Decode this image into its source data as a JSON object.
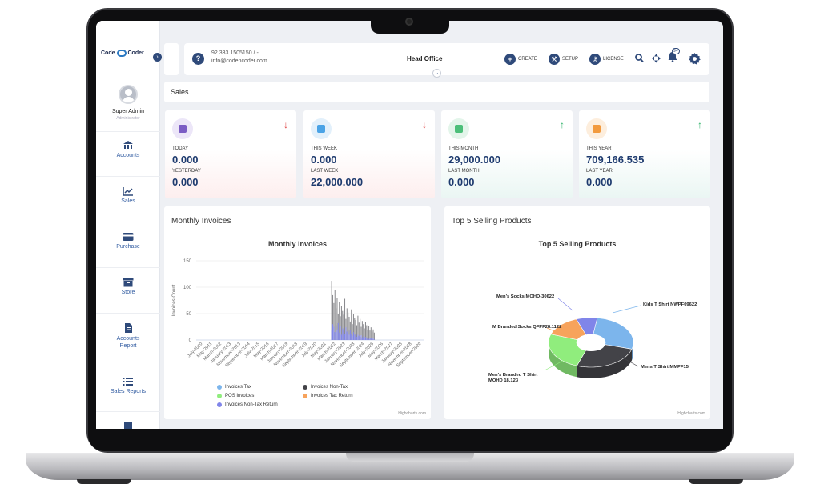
{
  "sidebar": {
    "logo_text_1": "Code",
    "logo_text_2": "Coder",
    "user_name": "Super Admin",
    "user_role": "Administrator",
    "items": [
      {
        "label": "Accounts"
      },
      {
        "label": "Sales"
      },
      {
        "label": "Purchase"
      },
      {
        "label": "Store"
      },
      {
        "label": "Accounts Report"
      },
      {
        "label": "Sales Reports"
      }
    ]
  },
  "topbar": {
    "phone": "92 333 1505150 / -",
    "email": "info@codencoder.com",
    "branch": "Head Office",
    "create_label": "CREATE",
    "setup_label": "SETUP",
    "license_label": "LICENSE",
    "notification_count": "9+"
  },
  "page": {
    "title": "Sales"
  },
  "cards": [
    {
      "label1": "TODAY",
      "value1": "0.000",
      "label2": "YESTERDAY",
      "value2": "0.000",
      "trend": "down",
      "icon_color": "#7b5cc4",
      "icon_bg": "#ece6f8"
    },
    {
      "label1": "THIS WEEK",
      "value1": "0.000",
      "label2": "LAST WEEK",
      "value2": "22,000.000",
      "trend": "down",
      "icon_color": "#4aa3e6",
      "icon_bg": "#e2f0fb"
    },
    {
      "label1": "THIS MONTH",
      "value1": "29,000.000",
      "label2": "LAST MONTH",
      "value2": "0.000",
      "trend": "up",
      "icon_color": "#4cbf79",
      "icon_bg": "#e3f5ea"
    },
    {
      "label1": "THIS YEAR",
      "value1": "709,166.535",
      "label2": "LAST YEAR",
      "value2": "0.000",
      "trend": "up",
      "icon_color": "#f29a3d",
      "icon_bg": "#fdeedd"
    }
  ],
  "colors": {
    "down": "#e04646",
    "up": "#2fb36a",
    "accent": "#2f4a7a"
  },
  "panels": {
    "invoices_panel_title": "Monthly Invoices",
    "products_panel_title": "Top 5 Selling Products",
    "credits": "Highcharts.com"
  },
  "chart_data": [
    {
      "type": "bar",
      "title": "Monthly Invoices",
      "ylabel": "Invoices Count",
      "ylim": [
        0,
        150
      ],
      "yticks": [
        0,
        50,
        100,
        150
      ],
      "xticks": [
        "July-2010",
        "May-2011",
        "March-2012",
        "January-2013",
        "November-2013",
        "September-2014",
        "July-2015",
        "May-2016",
        "March-2017",
        "January-2018",
        "November-2018",
        "September-2019",
        "July-2020",
        "May-2021",
        "March-2022",
        "January-2023",
        "November-2023",
        "September-2024",
        "July-2025",
        "May-2026",
        "March-2027",
        "January-2028",
        "November-2028",
        "September-2029"
      ],
      "legend": [
        {
          "name": "Invoices Tax",
          "color": "#7cb5ec"
        },
        {
          "name": "Invoices Non-Tax",
          "color": "#434348"
        },
        {
          "name": "POS Invoices",
          "color": "#90ed7d"
        },
        {
          "name": "Invoices Tax Return",
          "color": "#f7a35c"
        },
        {
          "name": "Invoices Non-Tax Return",
          "color": "#8085e9"
        }
      ],
      "bars_start_index": 14,
      "bars_count": 40,
      "values_grey": [
        112,
        85,
        70,
        95,
        60,
        80,
        50,
        72,
        45,
        65,
        55,
        48,
        78,
        40,
        60,
        52,
        44,
        35,
        58,
        30,
        50,
        42,
        38,
        28,
        46,
        33,
        40,
        25,
        36,
        30,
        22,
        34,
        28,
        20,
        26,
        18,
        24,
        16,
        20,
        14
      ],
      "values_purple": [
        18,
        30,
        25,
        15,
        28,
        20,
        32,
        14,
        26,
        10,
        22,
        18,
        12,
        24,
        16,
        20,
        10,
        18,
        12,
        8,
        15,
        10,
        12,
        6,
        10,
        8,
        6,
        9,
        5,
        7,
        4,
        6,
        3,
        5,
        2,
        4,
        3,
        2,
        3,
        1
      ]
    },
    {
      "type": "pie",
      "title": "Top 5 Selling Products",
      "labels": [
        "Kids T Shirt NWPF09622",
        "Mens T Shirt MMPF15",
        "Men's Branded T Shirt MOHD 18.123",
        "M Branded Socks QFPF28.1122",
        "Men's Socks MOHD-30622"
      ],
      "values": [
        27,
        26,
        25,
        14,
        8
      ],
      "colors": [
        "#7cb5ec",
        "#434348",
        "#90ed7d",
        "#f7a35c",
        "#8085e9"
      ]
    }
  ]
}
